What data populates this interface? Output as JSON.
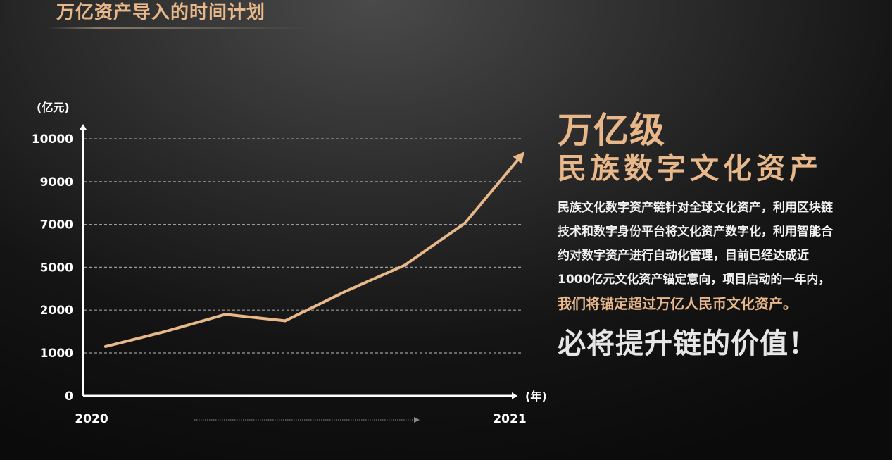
{
  "slide": {
    "title": "万亿资产导入的时间计划"
  },
  "chart_data": {
    "type": "line",
    "title": "",
    "ylabel": "(亿元)",
    "xlabel": "(年)",
    "x_tick_labels": [
      "2020",
      "2021"
    ],
    "y_tick_labels": [
      "0",
      "1000",
      "2000",
      "5000",
      "7000",
      "9000",
      "10000"
    ],
    "y_scale": "ordinal",
    "grid": true,
    "legend": "none",
    "series": [
      {
        "values": [
          1150,
          1500,
          1900,
          1750,
          3300,
          5100,
          7050,
          9700
        ],
        "color": "#e8b78a"
      }
    ]
  },
  "panel": {
    "headline_1": "万亿级",
    "headline_2": "民族数字文化资产",
    "body_text": "民族文化数字资产链针对全球文化资产，利用区块链技术和数字身份平台将文化资产数字化，利用智能合约对数字资产进行自动化管理，目前已经达成近1000亿元文化资产锚定意向，项目启动的一年内，",
    "body_highlight": "我们将锚定超过万亿人民币文化资产。",
    "slogan": "必将提升链的价值！"
  },
  "colors": {
    "accent": "#e8b78a",
    "text": "#ffffff",
    "grid": "#9a9a9a"
  }
}
